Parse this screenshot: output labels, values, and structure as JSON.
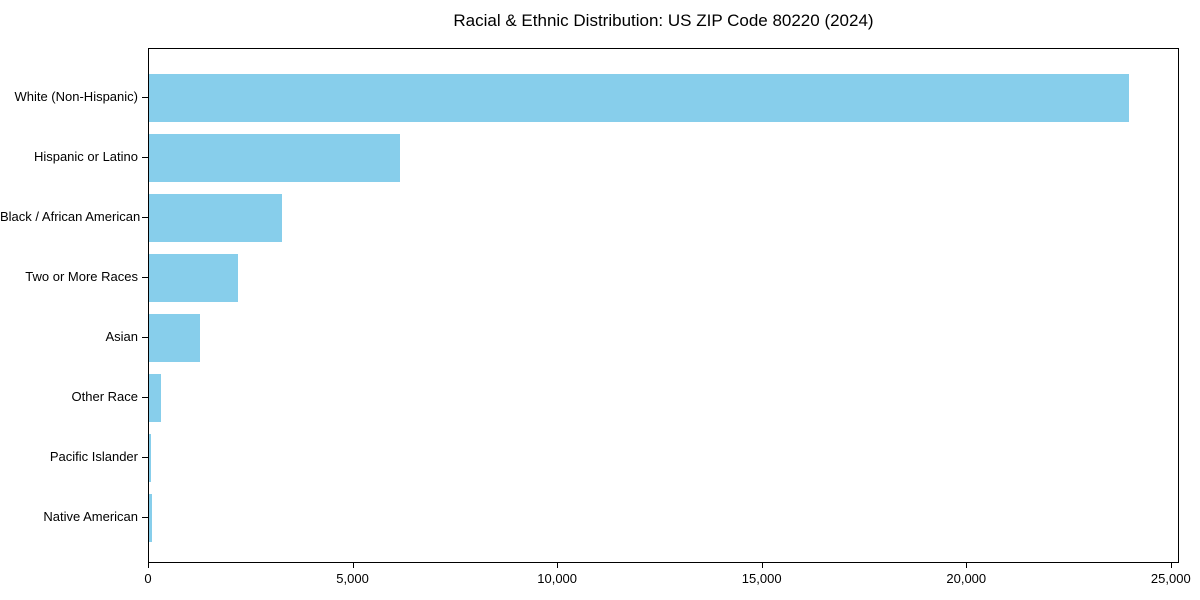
{
  "chart_data": {
    "type": "bar",
    "orientation": "horizontal",
    "title": "Racial & Ethnic Distribution: US ZIP Code 80220 (2024)",
    "categories": [
      "White (Non-Hispanic)",
      "Hispanic or Latino",
      "Black / African American",
      "Two or More Races",
      "Asian",
      "Other Race",
      "Pacific Islander",
      "Native American"
    ],
    "values": [
      24000,
      6140,
      3250,
      2170,
      1250,
      300,
      60,
      70
    ],
    "xlabel": "",
    "ylabel": "",
    "xlim": [
      0,
      25200
    ],
    "x_ticks": [
      0,
      5000,
      10000,
      15000,
      20000,
      25000
    ],
    "x_tick_labels": [
      "0",
      "5,000",
      "10,000",
      "15,000",
      "20,000",
      "25,000"
    ],
    "bar_color": "#87CEEB",
    "background_color": "#ffffff",
    "spine_color": "#000000",
    "grid": false,
    "legend": null
  }
}
